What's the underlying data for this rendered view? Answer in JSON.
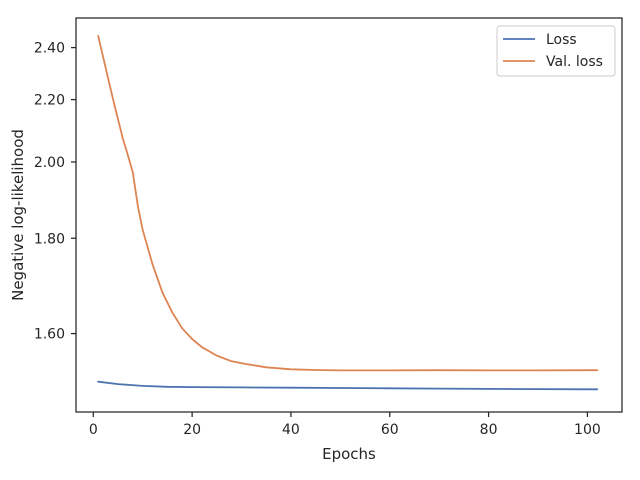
{
  "chart_data": {
    "type": "line",
    "title": "",
    "xlabel": "Epochs",
    "ylabel": "Negative log-likelihood",
    "xlim": [
      -3.5,
      107
    ],
    "ylim": [
      1.466,
      2.531
    ],
    "yscale": "reciprocal",
    "xticks": [
      0,
      20,
      40,
      60,
      80,
      100
    ],
    "yticks": [
      1.6,
      1.8,
      2.0,
      2.2,
      2.4
    ],
    "xtick_labels": [
      "0",
      "20",
      "40",
      "60",
      "80",
      "100"
    ],
    "ytick_labels": [
      "1.60",
      "1.80",
      "2.00",
      "2.20",
      "2.40"
    ],
    "grid": false,
    "legend_position": "top-right",
    "series": [
      {
        "name": "Loss",
        "color": "#4c72b0",
        "x": [
          1,
          5,
          10,
          15,
          20,
          30,
          40,
          50,
          60,
          70,
          80,
          90,
          100,
          102
        ],
        "y": [
          1.515,
          1.511,
          1.508,
          1.5065,
          1.506,
          1.5055,
          1.505,
          1.5045,
          1.504,
          1.5035,
          1.503,
          1.5028,
          1.5025,
          1.5025
        ]
      },
      {
        "name": "Val. loss",
        "color": "#dd8452",
        "x": [
          1,
          2,
          4,
          6,
          7,
          8,
          9,
          10,
          12,
          14,
          16,
          18,
          20,
          22,
          25,
          28,
          31,
          35,
          40,
          45,
          50,
          60,
          70,
          80,
          90,
          100,
          102
        ],
        "y": [
          2.45,
          2.36,
          2.2,
          2.07,
          2.02,
          1.97,
          1.88,
          1.82,
          1.74,
          1.68,
          1.64,
          1.61,
          1.59,
          1.575,
          1.56,
          1.55,
          1.545,
          1.5395,
          1.536,
          1.5348,
          1.5342,
          1.5342,
          1.5345,
          1.5342,
          1.5342,
          1.5345,
          1.5345
        ]
      }
    ]
  }
}
